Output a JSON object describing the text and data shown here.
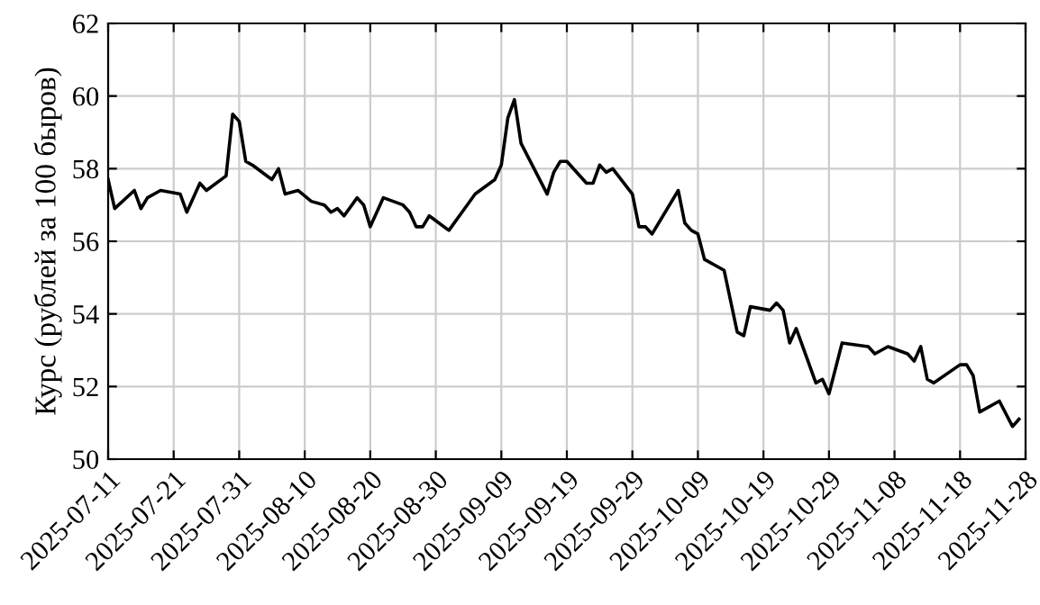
{
  "chart_data": {
    "type": "line",
    "ylabel": "Курс (рублей за 100 быров)",
    "grid": true,
    "marker": "none",
    "line_style": "solid",
    "xlim": [
      "2025-07-11",
      "2025-11-28"
    ],
    "ylim": [
      50,
      62
    ],
    "yticks": [
      50,
      52,
      54,
      56,
      58,
      60,
      62
    ],
    "xticks": [
      "2025-07-11",
      "2025-07-21",
      "2025-07-31",
      "2025-08-10",
      "2025-08-20",
      "2025-08-30",
      "2025-09-09",
      "2025-09-19",
      "2025-09-29",
      "2025-10-09",
      "2025-10-19",
      "2025-10-29",
      "2025-11-08",
      "2025-11-18",
      "2025-11-28"
    ],
    "x": [
      "2025-07-11",
      "2025-07-12",
      "2025-07-15",
      "2025-07-16",
      "2025-07-17",
      "2025-07-19",
      "2025-07-22",
      "2025-07-23",
      "2025-07-25",
      "2025-07-26",
      "2025-07-29",
      "2025-07-30",
      "2025-07-31",
      "2025-08-01",
      "2025-08-02",
      "2025-08-05",
      "2025-08-06",
      "2025-08-07",
      "2025-08-09",
      "2025-08-11",
      "2025-08-13",
      "2025-08-14",
      "2025-08-15",
      "2025-08-16",
      "2025-08-18",
      "2025-08-19",
      "2025-08-20",
      "2025-08-22",
      "2025-08-25",
      "2025-08-26",
      "2025-08-27",
      "2025-08-28",
      "2025-08-29",
      "2025-09-01",
      "2025-09-03",
      "2025-09-05",
      "2025-09-08",
      "2025-09-09",
      "2025-09-10",
      "2025-09-11",
      "2025-09-12",
      "2025-09-16",
      "2025-09-17",
      "2025-09-18",
      "2025-09-19",
      "2025-09-22",
      "2025-09-23",
      "2025-09-24",
      "2025-09-25",
      "2025-09-26",
      "2025-09-29",
      "2025-09-30",
      "2025-10-01",
      "2025-10-02",
      "2025-10-06",
      "2025-10-07",
      "2025-10-08",
      "2025-10-09",
      "2025-10-10",
      "2025-10-13",
      "2025-10-15",
      "2025-10-16",
      "2025-10-17",
      "2025-10-20",
      "2025-10-21",
      "2025-10-22",
      "2025-10-23",
      "2025-10-24",
      "2025-10-27",
      "2025-10-28",
      "2025-10-29",
      "2025-10-31",
      "2025-11-04",
      "2025-11-05",
      "2025-11-07",
      "2025-11-10",
      "2025-11-11",
      "2025-11-12",
      "2025-11-13",
      "2025-11-14",
      "2025-11-18",
      "2025-11-19",
      "2025-11-20",
      "2025-11-21",
      "2025-11-24",
      "2025-11-26",
      "2025-11-27"
    ],
    "series": [
      {
        "color": "#000000",
        "values": [
          57.7,
          56.9,
          57.4,
          56.9,
          57.2,
          57.4,
          57.3,
          56.8,
          57.6,
          57.4,
          57.8,
          59.5,
          59.3,
          58.2,
          58.1,
          57.7,
          58.0,
          57.3,
          57.4,
          57.1,
          57.0,
          56.8,
          56.9,
          56.7,
          57.2,
          57.0,
          56.4,
          57.2,
          57.0,
          56.8,
          56.4,
          56.4,
          56.7,
          56.3,
          56.8,
          57.3,
          57.7,
          58.1,
          59.4,
          59.9,
          58.7,
          57.3,
          57.9,
          58.2,
          58.2,
          57.6,
          57.6,
          58.1,
          57.9,
          58.0,
          57.3,
          56.4,
          56.4,
          56.2,
          57.4,
          56.5,
          56.3,
          56.2,
          55.5,
          55.2,
          53.5,
          53.4,
          54.2,
          54.1,
          54.3,
          54.1,
          53.2,
          53.6,
          52.1,
          52.2,
          51.8,
          53.2,
          53.1,
          52.9,
          53.1,
          52.9,
          52.7,
          53.1,
          52.2,
          52.1,
          52.6,
          52.6,
          52.3,
          51.3,
          51.6,
          50.9,
          51.1
        ]
      }
    ]
  }
}
